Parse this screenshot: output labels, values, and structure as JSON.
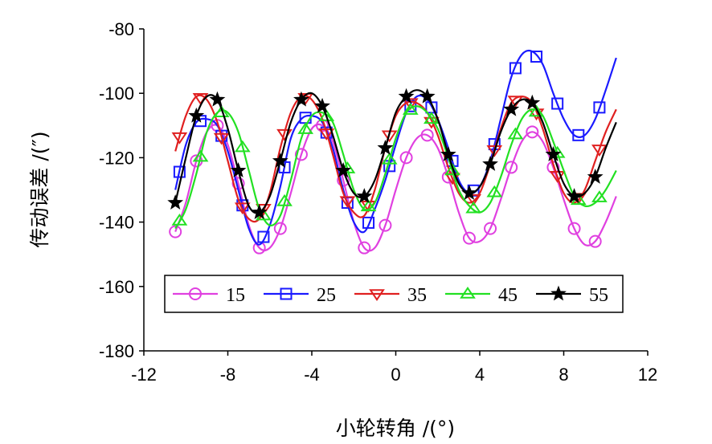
{
  "chart_data": {
    "type": "line",
    "title": "",
    "xlabel": "小轮转角 /(°)",
    "ylabel": "传动误差 /(″)",
    "xlim": [
      -12,
      12
    ],
    "ylim": [
      -180,
      -80
    ],
    "xticks": [
      -12,
      -8,
      -4,
      0,
      4,
      8,
      12
    ],
    "yticks": [
      -80,
      -100,
      -120,
      -140,
      -160,
      -180
    ],
    "grid": false,
    "legend_position": "bottom-center",
    "series": [
      {
        "name": "15",
        "color": "#e040e0",
        "marker": "circle",
        "x": [
          -10.5,
          -10.0,
          -9.5,
          -9.0,
          -8.5,
          -8.0,
          -7.5,
          -7.0,
          -6.5,
          -6.0,
          -5.5,
          -5.0,
          -4.5,
          -4.0,
          -3.5,
          -3.0,
          -2.5,
          -2.0,
          -1.5,
          -1.0,
          -0.5,
          0.0,
          0.5,
          1.0,
          1.5,
          2.0,
          2.5,
          3.0,
          3.5,
          4.0,
          4.5,
          5.0,
          5.5,
          6.0,
          6.5,
          7.0,
          7.5,
          8.0,
          8.5,
          9.0,
          9.5,
          10.0,
          10.5
        ],
        "y": [
          -143,
          -134,
          -121,
          -112,
          -110,
          -116,
          -128,
          -141,
          -148,
          -148,
          -142,
          -131,
          -119,
          -111,
          -110,
          -115,
          -127,
          -140,
          -148,
          -148,
          -141,
          -130,
          -120,
          -114,
          -113,
          -117,
          -126,
          -137,
          -145,
          -146,
          -142,
          -133,
          -123,
          -115,
          -112,
          -115,
          -123,
          -133,
          -142,
          -147,
          -146,
          -140,
          -132
        ],
        "marker_x": [
          -10.5,
          -9.5,
          -8.5,
          -7.5,
          -6.5,
          -5.5,
          -4.5,
          -3.5,
          -2.5,
          -1.5,
          -0.5,
          0.5,
          1.5,
          2.5,
          3.5,
          4.5,
          5.5,
          6.5,
          7.5,
          8.5,
          9.5
        ]
      },
      {
        "name": "25",
        "color": "#1a1aff",
        "marker": "square",
        "x": [
          -10.5,
          -10.0,
          -9.5,
          -9.0,
          -8.5,
          -8.0,
          -7.5,
          -7.0,
          -6.5,
          -6.0,
          -5.5,
          -5.0,
          -4.5,
          -4.0,
          -3.5,
          -3.0,
          -2.5,
          -2.0,
          -1.5,
          -1.0,
          -0.5,
          0.0,
          0.5,
          1.0,
          1.5,
          2.0,
          2.5,
          3.0,
          3.5,
          4.0,
          4.5,
          5.0,
          5.5,
          6.0,
          6.5,
          7.0,
          7.5,
          8.0,
          8.5,
          9.0,
          9.5,
          10.0,
          10.5
        ],
        "y": [
          -130,
          -116,
          -109,
          -108,
          -110,
          -118,
          -130,
          -142,
          -147,
          -141,
          -129,
          -114,
          -108,
          -107,
          -109,
          -117,
          -130,
          -140,
          -143,
          -136,
          -127,
          -116,
          -106,
          -101,
          -102,
          -108,
          -117,
          -127,
          -131,
          -129,
          -121,
          -108,
          -95,
          -88,
          -87,
          -91,
          -100,
          -108,
          -113,
          -113,
          -108,
          -99,
          -89
        ],
        "marker_x": [
          -10.3,
          -9.3,
          -8.3,
          -7.3,
          -6.3,
          -5.3,
          -4.3,
          -3.3,
          -2.3,
          -1.3,
          -0.3,
          0.7,
          1.7,
          2.7,
          3.7,
          4.7,
          5.7,
          6.7,
          7.7,
          8.7,
          9.7
        ]
      },
      {
        "name": "35",
        "color": "#e02020",
        "marker": "triangle-down",
        "x": [
          -10.5,
          -10.0,
          -9.5,
          -9.0,
          -8.5,
          -8.0,
          -7.5,
          -7.0,
          -6.5,
          -6.0,
          -5.5,
          -5.0,
          -4.5,
          -4.0,
          -3.5,
          -3.0,
          -2.5,
          -2.0,
          -1.5,
          -1.0,
          -0.5,
          0.0,
          0.5,
          1.0,
          1.5,
          2.0,
          2.5,
          3.0,
          3.5,
          4.0,
          4.5,
          5.0,
          5.5,
          6.0,
          6.5,
          7.0,
          7.5,
          8.0,
          8.5,
          9.0,
          9.5,
          10.0,
          10.5
        ],
        "y": [
          -118,
          -107,
          -101,
          -102,
          -109,
          -121,
          -133,
          -139,
          -139,
          -131,
          -117,
          -106,
          -101,
          -102,
          -108,
          -119,
          -131,
          -137,
          -138,
          -130,
          -117,
          -107,
          -103,
          -103,
          -106,
          -113,
          -123,
          -131,
          -134,
          -131,
          -122,
          -111,
          -103,
          -101,
          -103,
          -111,
          -122,
          -131,
          -134,
          -130,
          -121,
          -112,
          -105
        ],
        "marker_x": [
          -10.3,
          -9.3,
          -8.3,
          -7.3,
          -6.3,
          -5.3,
          -4.3,
          -3.3,
          -2.3,
          -1.3,
          -0.3,
          0.7,
          1.7,
          2.7,
          3.7,
          4.7,
          5.7,
          6.7,
          7.7,
          8.7,
          9.7
        ]
      },
      {
        "name": "45",
        "color": "#22e022",
        "marker": "triangle-up",
        "x": [
          -10.5,
          -10.0,
          -9.5,
          -9.0,
          -8.5,
          -8.0,
          -7.5,
          -7.0,
          -6.5,
          -6.0,
          -5.5,
          -5.0,
          -4.5,
          -4.0,
          -3.5,
          -3.0,
          -2.5,
          -2.0,
          -1.5,
          -1.0,
          -0.5,
          0.0,
          0.5,
          1.0,
          1.5,
          2.0,
          2.5,
          3.0,
          3.5,
          4.0,
          4.5,
          5.0,
          5.5,
          6.0,
          6.5,
          7.0,
          7.5,
          8.0,
          8.5,
          9.0,
          9.5,
          10.0,
          10.5
        ],
        "y": [
          -142,
          -136,
          -125,
          -112,
          -106,
          -106,
          -112,
          -124,
          -136,
          -141,
          -138,
          -127,
          -114,
          -107,
          -106,
          -109,
          -119,
          -130,
          -136,
          -134,
          -125,
          -114,
          -106,
          -104,
          -106,
          -111,
          -120,
          -130,
          -135,
          -137,
          -134,
          -126,
          -116,
          -108,
          -105,
          -107,
          -115,
          -124,
          -132,
          -135,
          -134,
          -130,
          -124
        ],
        "marker_x": [
          -10.3,
          -9.3,
          -8.3,
          -7.3,
          -6.3,
          -5.3,
          -4.3,
          -3.3,
          -2.3,
          -1.3,
          -0.3,
          0.7,
          1.7,
          2.7,
          3.7,
          4.7,
          5.7,
          6.7,
          7.7,
          8.7,
          9.7
        ]
      },
      {
        "name": "55",
        "color": "#000000",
        "marker": "star",
        "x": [
          -10.5,
          -10.0,
          -9.5,
          -9.0,
          -8.5,
          -8.0,
          -7.5,
          -7.0,
          -6.5,
          -6.0,
          -5.5,
          -5.0,
          -4.5,
          -4.0,
          -3.5,
          -3.0,
          -2.5,
          -2.0,
          -1.5,
          -1.0,
          -0.5,
          0.0,
          0.5,
          1.0,
          1.5,
          2.0,
          2.5,
          3.0,
          3.5,
          4.0,
          4.5,
          5.0,
          5.5,
          6.0,
          6.5,
          7.0,
          7.5,
          8.0,
          8.5,
          9.0,
          9.5,
          10.0,
          10.5
        ],
        "y": [
          -134,
          -120,
          -107,
          -101,
          -102,
          -111,
          -124,
          -135,
          -137,
          -132,
          -121,
          -109,
          -102,
          -100,
          -104,
          -113,
          -124,
          -131,
          -132,
          -127,
          -117,
          -106,
          -101,
          -99,
          -101,
          -108,
          -119,
          -128,
          -131,
          -129,
          -122,
          -112,
          -105,
          -102,
          -103,
          -109,
          -119,
          -128,
          -132,
          -131,
          -126,
          -117,
          -109
        ],
        "marker_x": [
          -10.5,
          -9.5,
          -8.5,
          -7.5,
          -6.5,
          -5.5,
          -4.5,
          -3.5,
          -2.5,
          -1.5,
          -0.5,
          0.5,
          1.5,
          2.5,
          3.5,
          4.5,
          5.5,
          6.5,
          7.5,
          8.5,
          9.5
        ]
      }
    ]
  }
}
